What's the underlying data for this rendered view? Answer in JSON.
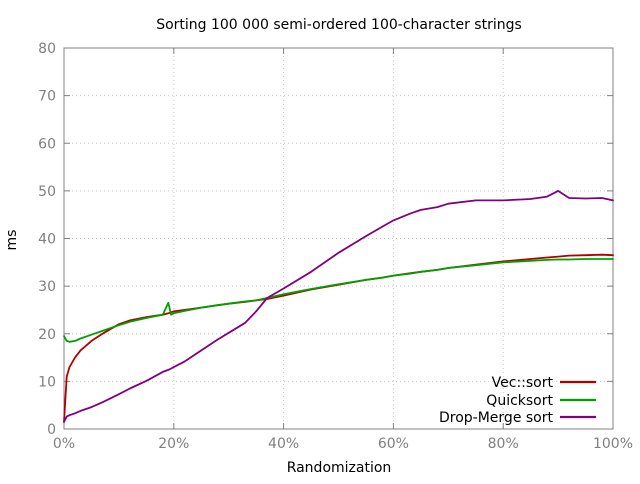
{
  "chart_data": {
    "type": "line",
    "title": "Sorting 100 000 semi-ordered 100-character strings",
    "xlabel": "Randomization",
    "ylabel": "ms",
    "xlim": [
      0,
      100
    ],
    "ylim": [
      0,
      80
    ],
    "x_unit": "%",
    "x_ticks": [
      0,
      20,
      40,
      60,
      80,
      100
    ],
    "x_tick_labels": [
      "0%",
      "20%",
      "40%",
      "60%",
      "80%",
      "100%"
    ],
    "y_ticks": [
      0,
      10,
      20,
      30,
      40,
      50,
      60,
      70,
      80
    ],
    "y_tick_labels": [
      "0",
      "10",
      "20",
      "30",
      "40",
      "50",
      "60",
      "70",
      "80"
    ],
    "grid": true,
    "legend_position": "bottom-right",
    "x": [
      0,
      0.5,
      1,
      2,
      3,
      5,
      7,
      10,
      12,
      15,
      18,
      19,
      19.5,
      20,
      22,
      25,
      28,
      30,
      33,
      35,
      37,
      40,
      45,
      50,
      55,
      58,
      60,
      63,
      65,
      68,
      70,
      75,
      80,
      85,
      88,
      90,
      92,
      95,
      98,
      100
    ],
    "series": [
      {
        "name": "Vec::sort",
        "color": "#b00000",
        "values": [
          1.5,
          11,
          13,
          15,
          16.5,
          18.5,
          20,
          22,
          22.8,
          23.5,
          24,
          24.3,
          24.5,
          24.7,
          25,
          25.5,
          26,
          26.3,
          26.7,
          27,
          27.3,
          28,
          29.3,
          30.3,
          31.3,
          31.8,
          32.2,
          32.7,
          33,
          33.4,
          33.8,
          34.5,
          35.2,
          35.7,
          36,
          36.2,
          36.4,
          36.5,
          36.6,
          36.5
        ]
      },
      {
        "name": "Quicksort",
        "color": "#00a000",
        "values": [
          19.5,
          18.5,
          18.3,
          18.5,
          19,
          19.8,
          20.6,
          21.8,
          22.5,
          23.3,
          24,
          26.5,
          24,
          24.3,
          24.8,
          25.5,
          26,
          26.3,
          26.8,
          27,
          27.5,
          28.3,
          29.4,
          30.4,
          31.3,
          31.8,
          32.2,
          32.6,
          33,
          33.4,
          33.8,
          34.4,
          35,
          35.3,
          35.5,
          35.6,
          35.6,
          35.7,
          35.7,
          35.7
        ]
      },
      {
        "name": "Drop-Merge sort",
        "color": "#800080",
        "values": [
          1.5,
          2.6,
          2.9,
          3.3,
          3.8,
          4.6,
          5.6,
          7.3,
          8.5,
          10.1,
          12,
          12.4,
          12.7,
          13,
          14.2,
          16.5,
          18.8,
          20.2,
          22.3,
          24.7,
          27.5,
          29.5,
          33,
          37,
          40.5,
          42.5,
          43.8,
          45.2,
          46,
          46.6,
          47.3,
          48,
          48,
          48.3,
          48.8,
          50,
          48.5,
          48.4,
          48.5,
          48
        ]
      }
    ]
  }
}
